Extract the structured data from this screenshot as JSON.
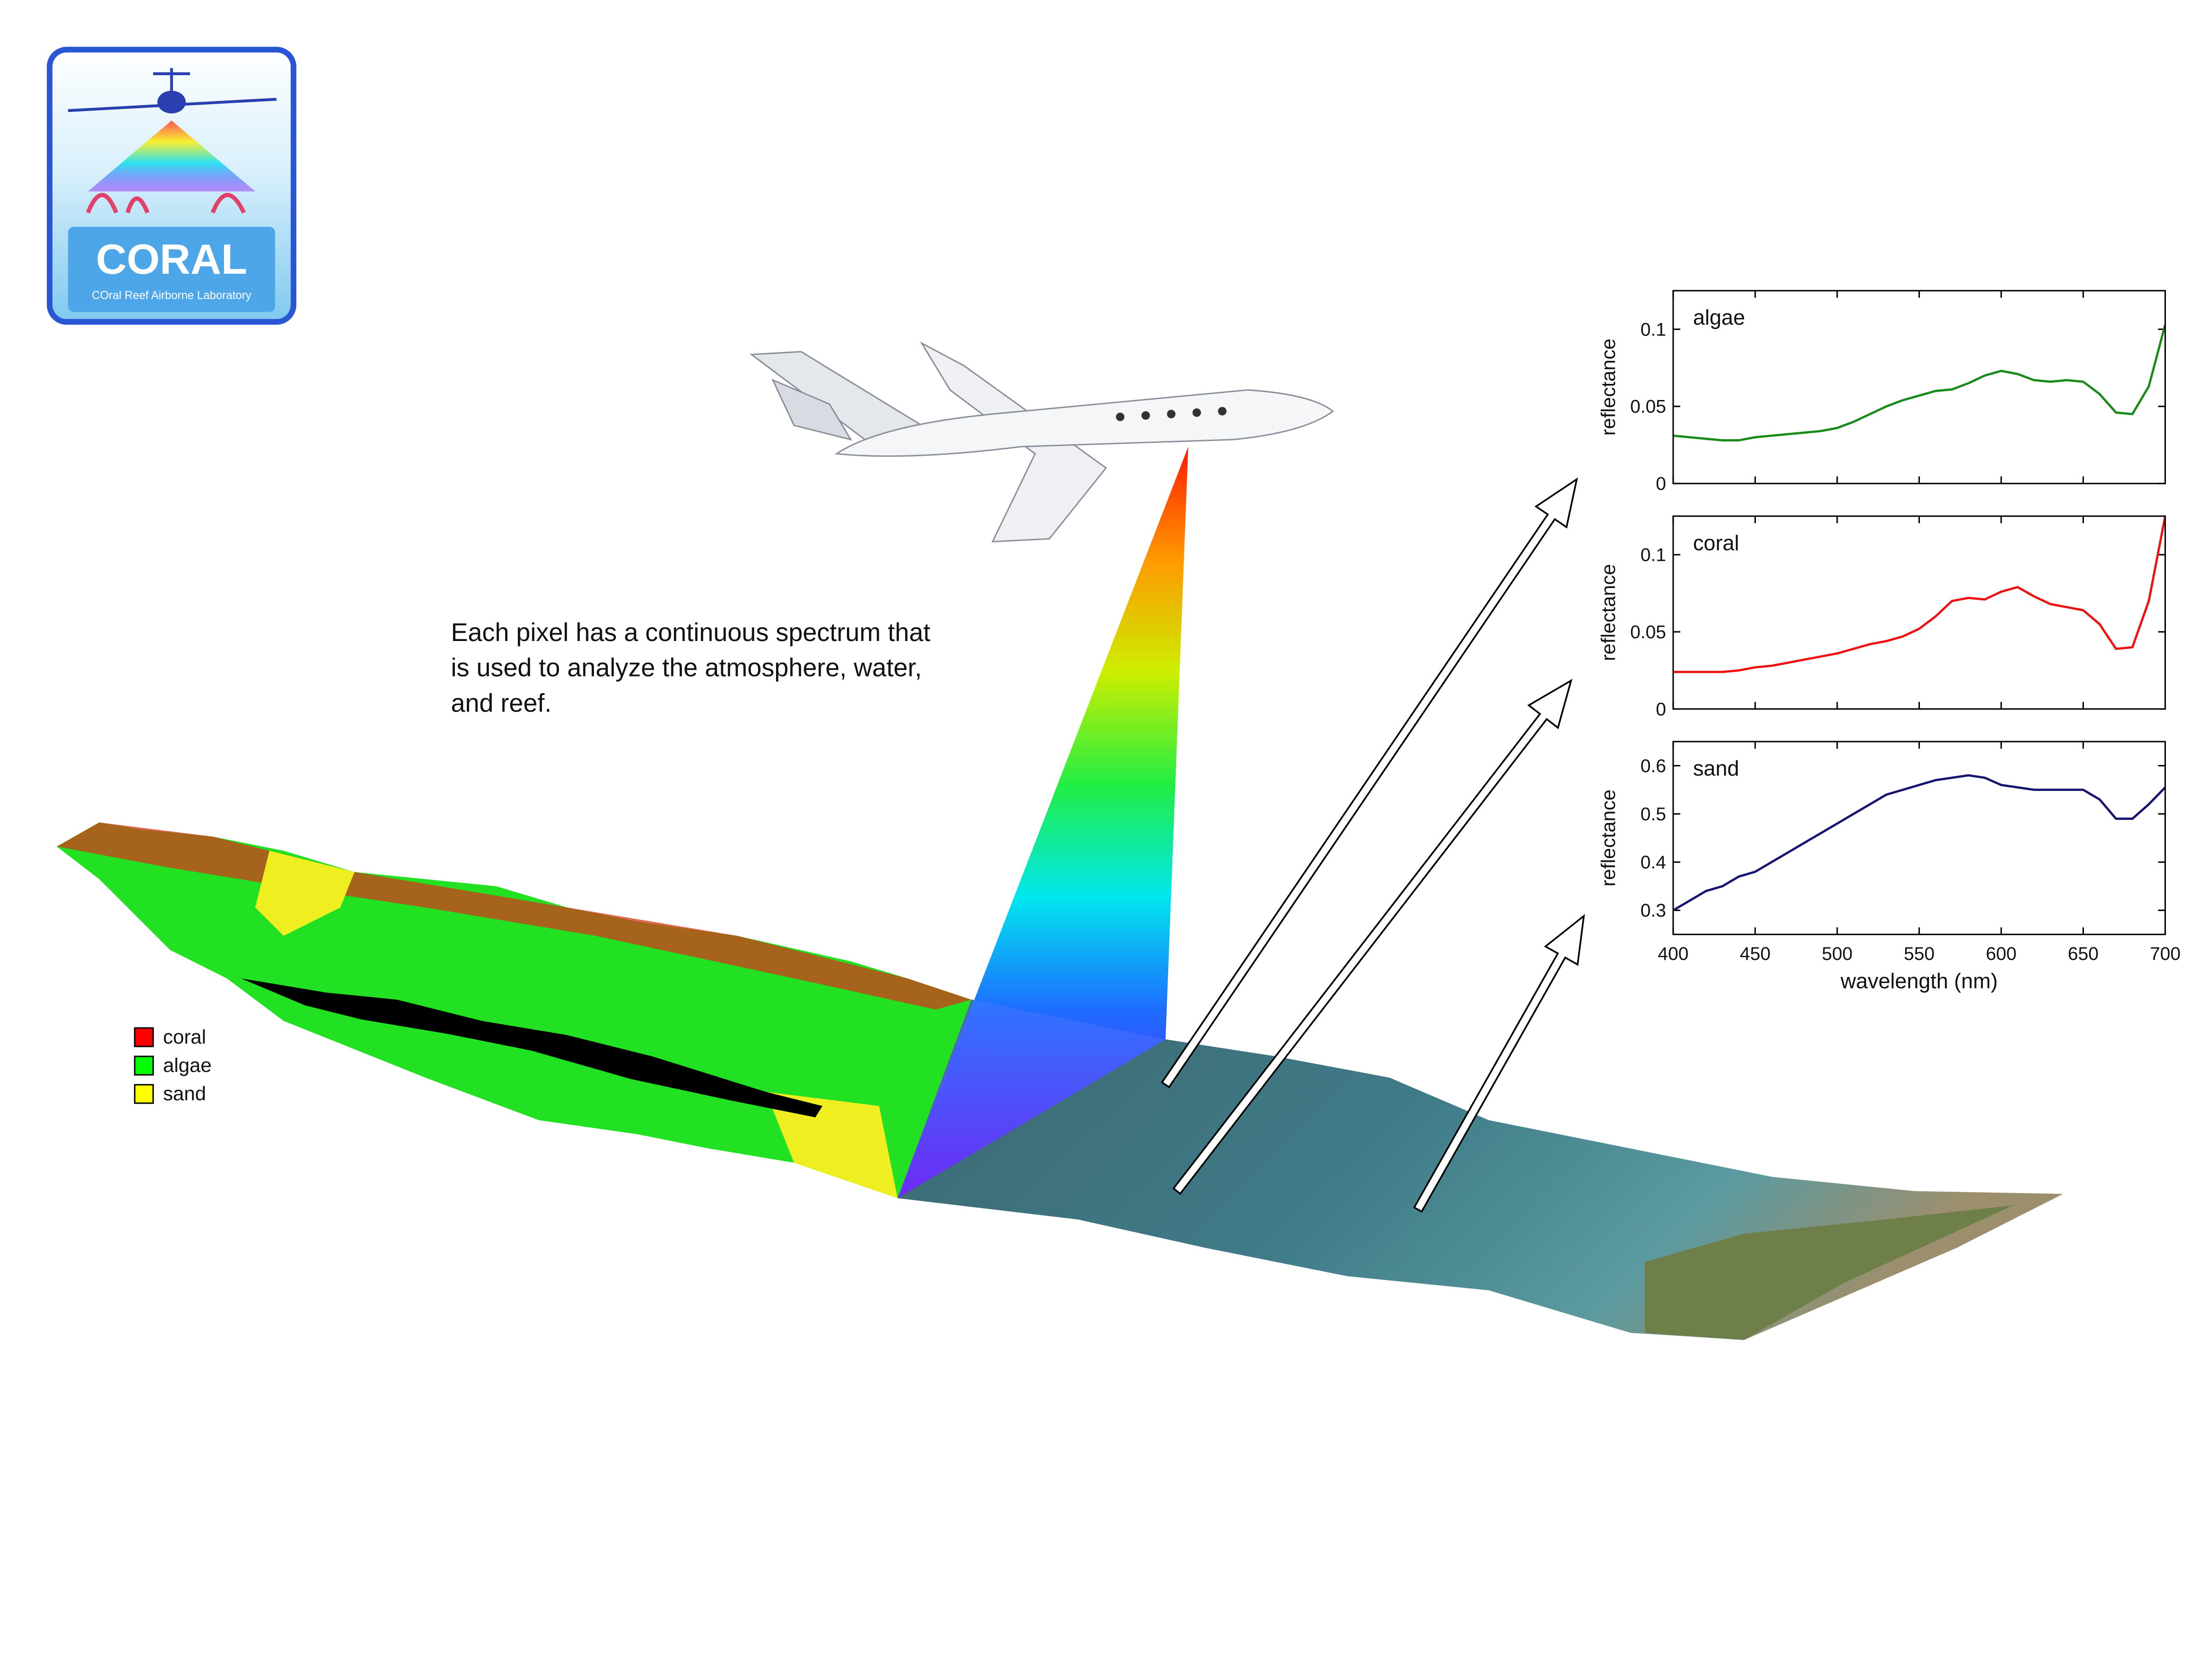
{
  "logo": {
    "title": "CORAL",
    "subtitle": "COral Reef Airborne Laboratory"
  },
  "caption": [
    "Each pixel has a continuous spectrum that",
    "is used to analyze the atmosphere, water,",
    "and reef."
  ],
  "map_legend": [
    {
      "name": "coral",
      "color": "#ff0000"
    },
    {
      "name": "algae",
      "color": "#00ff00"
    },
    {
      "name": "sand",
      "color": "#ffff00"
    }
  ],
  "chart_data": [
    {
      "type": "line",
      "title": "algae",
      "ylabel": "reflectance",
      "color": "#1a8a1a",
      "x": [
        400,
        410,
        420,
        430,
        440,
        450,
        460,
        470,
        480,
        490,
        500,
        510,
        520,
        530,
        540,
        550,
        560,
        570,
        580,
        590,
        600,
        610,
        620,
        630,
        640,
        650,
        660,
        670,
        680,
        690,
        700
      ],
      "values": [
        0.031,
        0.03,
        0.029,
        0.028,
        0.028,
        0.03,
        0.031,
        0.032,
        0.033,
        0.034,
        0.036,
        0.04,
        0.045,
        0.05,
        0.054,
        0.057,
        0.06,
        0.061,
        0.065,
        0.07,
        0.073,
        0.071,
        0.067,
        0.066,
        0.067,
        0.066,
        0.058,
        0.046,
        0.045,
        0.063,
        0.103
      ],
      "xlim": [
        400,
        700
      ],
      "ylim": [
        0,
        0.125
      ],
      "yticks": [
        0,
        0.05,
        0.1
      ]
    },
    {
      "type": "line",
      "title": "coral",
      "ylabel": "reflectance",
      "color": "#ee1111",
      "x": [
        400,
        410,
        420,
        430,
        440,
        450,
        460,
        470,
        480,
        490,
        500,
        510,
        520,
        530,
        540,
        550,
        560,
        570,
        580,
        590,
        600,
        610,
        620,
        630,
        640,
        650,
        660,
        670,
        680,
        690,
        700
      ],
      "values": [
        0.024,
        0.024,
        0.024,
        0.024,
        0.025,
        0.027,
        0.028,
        0.03,
        0.032,
        0.034,
        0.036,
        0.039,
        0.042,
        0.044,
        0.047,
        0.052,
        0.06,
        0.07,
        0.072,
        0.071,
        0.076,
        0.079,
        0.073,
        0.068,
        0.066,
        0.064,
        0.055,
        0.039,
        0.04,
        0.07,
        0.125
      ],
      "xlim": [
        400,
        700
      ],
      "ylim": [
        0,
        0.125
      ],
      "yticks": [
        0,
        0.05,
        0.1
      ]
    },
    {
      "type": "line",
      "title": "sand",
      "ylabel": "reflectance",
      "xlabel": "wavelength (nm)",
      "color": "#141470",
      "x": [
        400,
        410,
        420,
        430,
        440,
        450,
        460,
        470,
        480,
        490,
        500,
        510,
        520,
        530,
        540,
        550,
        560,
        570,
        580,
        590,
        600,
        610,
        620,
        630,
        640,
        650,
        660,
        670,
        680,
        690,
        700
      ],
      "values": [
        0.3,
        0.32,
        0.34,
        0.35,
        0.37,
        0.38,
        0.4,
        0.42,
        0.44,
        0.46,
        0.48,
        0.5,
        0.52,
        0.54,
        0.55,
        0.56,
        0.57,
        0.575,
        0.58,
        0.575,
        0.56,
        0.555,
        0.55,
        0.55,
        0.55,
        0.55,
        0.53,
        0.49,
        0.49,
        0.52,
        0.555
      ],
      "xlim": [
        400,
        700
      ],
      "xticks": [
        400,
        450,
        500,
        550,
        600,
        650,
        700
      ],
      "ylim": [
        0.25,
        0.65
      ],
      "yticks": [
        0.3,
        0.4,
        0.5,
        0.6
      ]
    }
  ]
}
